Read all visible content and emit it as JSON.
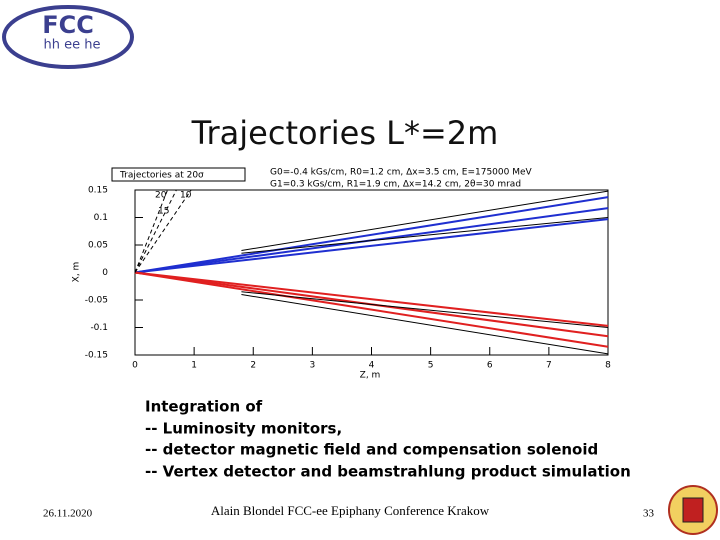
{
  "logo": {
    "name": "FCC",
    "sub": "hh ee he"
  },
  "title": "Trajectories L*=2m",
  "chart_data": {
    "type": "line",
    "legend_title": "Trajectories at 20σ",
    "annotations": [
      "G0=-0.4 kGs/cm, R0=1.2 cm, Δx=3.5 cm, E=175000 MeV",
      "G1=0.3 kGs/cm, R1=1.9 cm, Δx=14.2 cm, 2θ=30 mrad"
    ],
    "line_labels": [
      "20",
      "10",
      "15"
    ],
    "x_label": "Z, m",
    "y_label": "X, m",
    "xlim": [
      0,
      8
    ],
    "ylim": [
      -0.15,
      0.15
    ],
    "xticks": [
      0,
      1,
      2,
      3,
      4,
      5,
      6,
      7,
      8
    ],
    "yticks": [
      0.15,
      0.1,
      0.05,
      0,
      -0.05,
      -0.1,
      -0.15
    ],
    "series": [
      {
        "color": "#1f2fd0",
        "x": [
          0,
          8
        ],
        "values": [
          0,
          0.137
        ]
      },
      {
        "color": "#1f2fd0",
        "x": [
          0,
          8
        ],
        "values": [
          0,
          0.117
        ]
      },
      {
        "color": "#1f2fd0",
        "x": [
          0,
          8
        ],
        "values": [
          0,
          0.097
        ]
      },
      {
        "color": "#e02020",
        "x": [
          0,
          8
        ],
        "values": [
          0,
          -0.097
        ]
      },
      {
        "color": "#e02020",
        "x": [
          0,
          8
        ],
        "values": [
          0,
          -0.116
        ]
      },
      {
        "color": "#e02020",
        "x": [
          0,
          8
        ],
        "values": [
          0,
          -0.135
        ]
      },
      {
        "color": "#000000",
        "x": [
          1.8,
          8
        ],
        "values": [
          0.04,
          0.148
        ]
      },
      {
        "color": "#000000",
        "x": [
          1.8,
          8
        ],
        "values": [
          0.035,
          0.1
        ]
      },
      {
        "color": "#000000",
        "x": [
          1.8,
          8
        ],
        "values": [
          -0.04,
          -0.148
        ]
      },
      {
        "color": "#000000",
        "x": [
          1.8,
          8
        ],
        "values": [
          -0.035,
          -0.1
        ]
      },
      {
        "color": "#000000",
        "dashed": true,
        "x": [
          0,
          0.55
        ],
        "values": [
          0,
          0.15
        ]
      },
      {
        "color": "#000000",
        "dashed": true,
        "x": [
          0,
          0.7
        ],
        "values": [
          0,
          0.15
        ]
      },
      {
        "color": "#000000",
        "dashed": true,
        "x": [
          0,
          0.95
        ],
        "values": [
          0,
          0.15
        ]
      }
    ]
  },
  "body": [
    "Integration of",
    "-- Luminosity monitors,",
    "-- detector magnetic field and compensation solenoid",
    "-- Vertex detector and beamstrahlung product simulation"
  ],
  "footer": {
    "date": "26.11.2020",
    "center": "Alain Blondel FCC-ee Epiphany Conference Krakow",
    "page": "33"
  }
}
